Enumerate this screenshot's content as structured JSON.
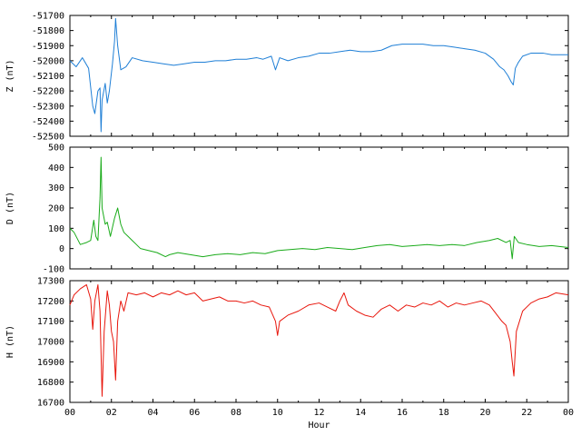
{
  "chart_data": [
    {
      "type": "line",
      "ylabel": "Z (nT)",
      "ylim": [
        -52500,
        -51700
      ],
      "yticks": [
        -51700,
        -51800,
        -51900,
        -52000,
        -52100,
        -52200,
        -52300,
        -52400,
        -52500
      ],
      "series": [
        {
          "color": "#1f7fd6",
          "points": [
            [
              0,
              -52000
            ],
            [
              0.3,
              -52040
            ],
            [
              0.6,
              -51980
            ],
            [
              0.9,
              -52050
            ],
            [
              1.1,
              -52300
            ],
            [
              1.2,
              -52350
            ],
            [
              1.35,
              -52200
            ],
            [
              1.45,
              -52180
            ],
            [
              1.5,
              -52470
            ],
            [
              1.55,
              -52260
            ],
            [
              1.7,
              -52150
            ],
            [
              1.8,
              -52280
            ],
            [
              1.9,
              -52200
            ],
            [
              2.05,
              -52020
            ],
            [
              2.15,
              -51870
            ],
            [
              2.2,
              -51720
            ],
            [
              2.3,
              -51900
            ],
            [
              2.45,
              -52060
            ],
            [
              2.7,
              -52040
            ],
            [
              3.0,
              -51980
            ],
            [
              3.5,
              -52000
            ],
            [
              4.0,
              -52010
            ],
            [
              4.5,
              -52020
            ],
            [
              5.0,
              -52030
            ],
            [
              5.5,
              -52020
            ],
            [
              6.0,
              -52010
            ],
            [
              6.5,
              -52010
            ],
            [
              7.0,
              -52000
            ],
            [
              7.5,
              -52000
            ],
            [
              8.0,
              -51990
            ],
            [
              8.5,
              -51990
            ],
            [
              9.0,
              -51980
            ],
            [
              9.3,
              -51990
            ],
            [
              9.7,
              -51970
            ],
            [
              9.9,
              -52060
            ],
            [
              10.1,
              -51980
            ],
            [
              10.5,
              -52000
            ],
            [
              11.0,
              -51980
            ],
            [
              11.5,
              -51970
            ],
            [
              12.0,
              -51950
            ],
            [
              12.5,
              -51950
            ],
            [
              13.0,
              -51940
            ],
            [
              13.5,
              -51930
            ],
            [
              14.0,
              -51940
            ],
            [
              14.5,
              -51940
            ],
            [
              15.0,
              -51930
            ],
            [
              15.5,
              -51900
            ],
            [
              16.0,
              -51890
            ],
            [
              16.5,
              -51890
            ],
            [
              17.0,
              -51890
            ],
            [
              17.5,
              -51900
            ],
            [
              18.0,
              -51900
            ],
            [
              18.5,
              -51910
            ],
            [
              19.0,
              -51920
            ],
            [
              19.5,
              -51930
            ],
            [
              20.0,
              -51950
            ],
            [
              20.4,
              -51990
            ],
            [
              20.7,
              -52040
            ],
            [
              20.9,
              -52060
            ],
            [
              21.1,
              -52100
            ],
            [
              21.25,
              -52140
            ],
            [
              21.35,
              -52160
            ],
            [
              21.45,
              -52050
            ],
            [
              21.6,
              -52010
            ],
            [
              21.8,
              -51970
            ],
            [
              22.2,
              -51950
            ],
            [
              22.8,
              -51950
            ],
            [
              23.2,
              -51960
            ],
            [
              24.0,
              -51960
            ]
          ]
        }
      ]
    },
    {
      "type": "line",
      "ylabel": "D (nT)",
      "ylim": [
        -100,
        500
      ],
      "yticks": [
        500,
        400,
        300,
        200,
        100,
        0,
        -100
      ],
      "series": [
        {
          "color": "#1aab1a",
          "points": [
            [
              0,
              100
            ],
            [
              0.2,
              80
            ],
            [
              0.5,
              20
            ],
            [
              0.8,
              30
            ],
            [
              1.0,
              40
            ],
            [
              1.15,
              140
            ],
            [
              1.25,
              60
            ],
            [
              1.35,
              40
            ],
            [
              1.45,
              250
            ],
            [
              1.5,
              450
            ],
            [
              1.55,
              200
            ],
            [
              1.7,
              120
            ],
            [
              1.8,
              130
            ],
            [
              1.95,
              60
            ],
            [
              2.15,
              150
            ],
            [
              2.3,
              200
            ],
            [
              2.45,
              120
            ],
            [
              2.6,
              80
            ],
            [
              2.8,
              60
            ],
            [
              3.0,
              40
            ],
            [
              3.2,
              20
            ],
            [
              3.4,
              0
            ],
            [
              3.8,
              -10
            ],
            [
              4.2,
              -20
            ],
            [
              4.6,
              -40
            ],
            [
              4.8,
              -30
            ],
            [
              5.2,
              -20
            ],
            [
              5.8,
              -30
            ],
            [
              6.4,
              -40
            ],
            [
              7.0,
              -30
            ],
            [
              7.6,
              -25
            ],
            [
              8.2,
              -30
            ],
            [
              8.8,
              -20
            ],
            [
              9.4,
              -25
            ],
            [
              10.0,
              -10
            ],
            [
              10.6,
              -5
            ],
            [
              11.2,
              0
            ],
            [
              11.8,
              -5
            ],
            [
              12.4,
              5
            ],
            [
              13.0,
              0
            ],
            [
              13.6,
              -5
            ],
            [
              14.2,
              5
            ],
            [
              14.8,
              15
            ],
            [
              15.4,
              20
            ],
            [
              16.0,
              10
            ],
            [
              16.6,
              15
            ],
            [
              17.2,
              20
            ],
            [
              17.8,
              15
            ],
            [
              18.4,
              20
            ],
            [
              19.0,
              15
            ],
            [
              19.6,
              30
            ],
            [
              20.2,
              40
            ],
            [
              20.6,
              50
            ],
            [
              21.0,
              30
            ],
            [
              21.2,
              40
            ],
            [
              21.3,
              -50
            ],
            [
              21.4,
              60
            ],
            [
              21.6,
              30
            ],
            [
              22.0,
              20
            ],
            [
              22.6,
              10
            ],
            [
              23.2,
              15
            ],
            [
              24.0,
              5
            ]
          ]
        }
      ]
    },
    {
      "type": "line",
      "ylabel": "H (nT)",
      "xlabel": "Hour",
      "ylim": [
        16700,
        17300
      ],
      "yticks": [
        17300,
        17200,
        17100,
        17000,
        16900,
        16800,
        16700
      ],
      "xlim": [
        0,
        24
      ],
      "xticks": [
        "00",
        "02",
        "04",
        "06",
        "08",
        "10",
        "12",
        "14",
        "16",
        "18",
        "20",
        "22",
        "00"
      ],
      "series": [
        {
          "color": "#e8160c",
          "points": [
            [
              0,
              17180
            ],
            [
              0.2,
              17230
            ],
            [
              0.5,
              17260
            ],
            [
              0.8,
              17280
            ],
            [
              1.0,
              17210
            ],
            [
              1.1,
              17060
            ],
            [
              1.2,
              17200
            ],
            [
              1.35,
              17280
            ],
            [
              1.45,
              17150
            ],
            [
              1.55,
              16730
            ],
            [
              1.65,
              17050
            ],
            [
              1.8,
              17250
            ],
            [
              1.9,
              17180
            ],
            [
              2.0,
              17050
            ],
            [
              2.1,
              17000
            ],
            [
              2.2,
              16810
            ],
            [
              2.3,
              17100
            ],
            [
              2.45,
              17200
            ],
            [
              2.6,
              17150
            ],
            [
              2.8,
              17240
            ],
            [
              3.2,
              17230
            ],
            [
              3.6,
              17240
            ],
            [
              4.0,
              17220
            ],
            [
              4.4,
              17240
            ],
            [
              4.8,
              17230
            ],
            [
              5.2,
              17250
            ],
            [
              5.6,
              17230
            ],
            [
              6.0,
              17240
            ],
            [
              6.4,
              17200
            ],
            [
              6.8,
              17210
            ],
            [
              7.2,
              17220
            ],
            [
              7.6,
              17200
            ],
            [
              8.0,
              17200
            ],
            [
              8.4,
              17190
            ],
            [
              8.8,
              17200
            ],
            [
              9.2,
              17180
            ],
            [
              9.6,
              17170
            ],
            [
              9.9,
              17100
            ],
            [
              10.0,
              17030
            ],
            [
              10.1,
              17100
            ],
            [
              10.5,
              17130
            ],
            [
              11.0,
              17150
            ],
            [
              11.5,
              17180
            ],
            [
              12.0,
              17190
            ],
            [
              12.4,
              17170
            ],
            [
              12.8,
              17150
            ],
            [
              13.0,
              17200
            ],
            [
              13.2,
              17240
            ],
            [
              13.4,
              17180
            ],
            [
              13.8,
              17150
            ],
            [
              14.2,
              17130
            ],
            [
              14.6,
              17120
            ],
            [
              15.0,
              17160
            ],
            [
              15.4,
              17180
            ],
            [
              15.8,
              17150
            ],
            [
              16.2,
              17180
            ],
            [
              16.6,
              17170
            ],
            [
              17.0,
              17190
            ],
            [
              17.4,
              17180
            ],
            [
              17.8,
              17200
            ],
            [
              18.2,
              17170
            ],
            [
              18.6,
              17190
            ],
            [
              19.0,
              17180
            ],
            [
              19.4,
              17190
            ],
            [
              19.8,
              17200
            ],
            [
              20.2,
              17180
            ],
            [
              20.5,
              17140
            ],
            [
              20.8,
              17100
            ],
            [
              21.0,
              17080
            ],
            [
              21.2,
              17000
            ],
            [
              21.3,
              16900
            ],
            [
              21.38,
              16830
            ],
            [
              21.5,
              17050
            ],
            [
              21.8,
              17150
            ],
            [
              22.2,
              17190
            ],
            [
              22.6,
              17210
            ],
            [
              23.0,
              17220
            ],
            [
              23.4,
              17240
            ],
            [
              24.0,
              17230
            ]
          ]
        }
      ]
    }
  ]
}
